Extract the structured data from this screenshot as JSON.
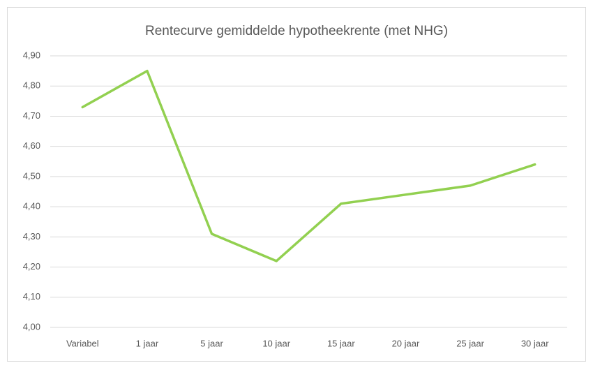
{
  "chart_data": {
    "type": "line",
    "title": "Rentecurve gemiddelde hypotheekrente (met NHG)",
    "categories": [
      "Variabel",
      "1 jaar",
      "5 jaar",
      "10 jaar",
      "15 jaar",
      "20 jaar",
      "25 jaar",
      "30 jaar"
    ],
    "values": [
      4.73,
      4.85,
      4.31,
      4.22,
      4.41,
      4.44,
      4.47,
      4.54
    ],
    "color": "#92d050",
    "ylim": [
      4.0,
      4.9
    ],
    "yticks": [
      {
        "value": 4.0,
        "label": "4,00"
      },
      {
        "value": 4.1,
        "label": "4,10"
      },
      {
        "value": 4.2,
        "label": "4,20"
      },
      {
        "value": 4.3,
        "label": "4,30"
      },
      {
        "value": 4.4,
        "label": "4,40"
      },
      {
        "value": 4.5,
        "label": "4,50"
      },
      {
        "value": 4.6,
        "label": "4,60"
      },
      {
        "value": 4.7,
        "label": "4,70"
      },
      {
        "value": 4.8,
        "label": "4,80"
      },
      {
        "value": 4.9,
        "label": "4,90"
      }
    ],
    "grid": true
  }
}
